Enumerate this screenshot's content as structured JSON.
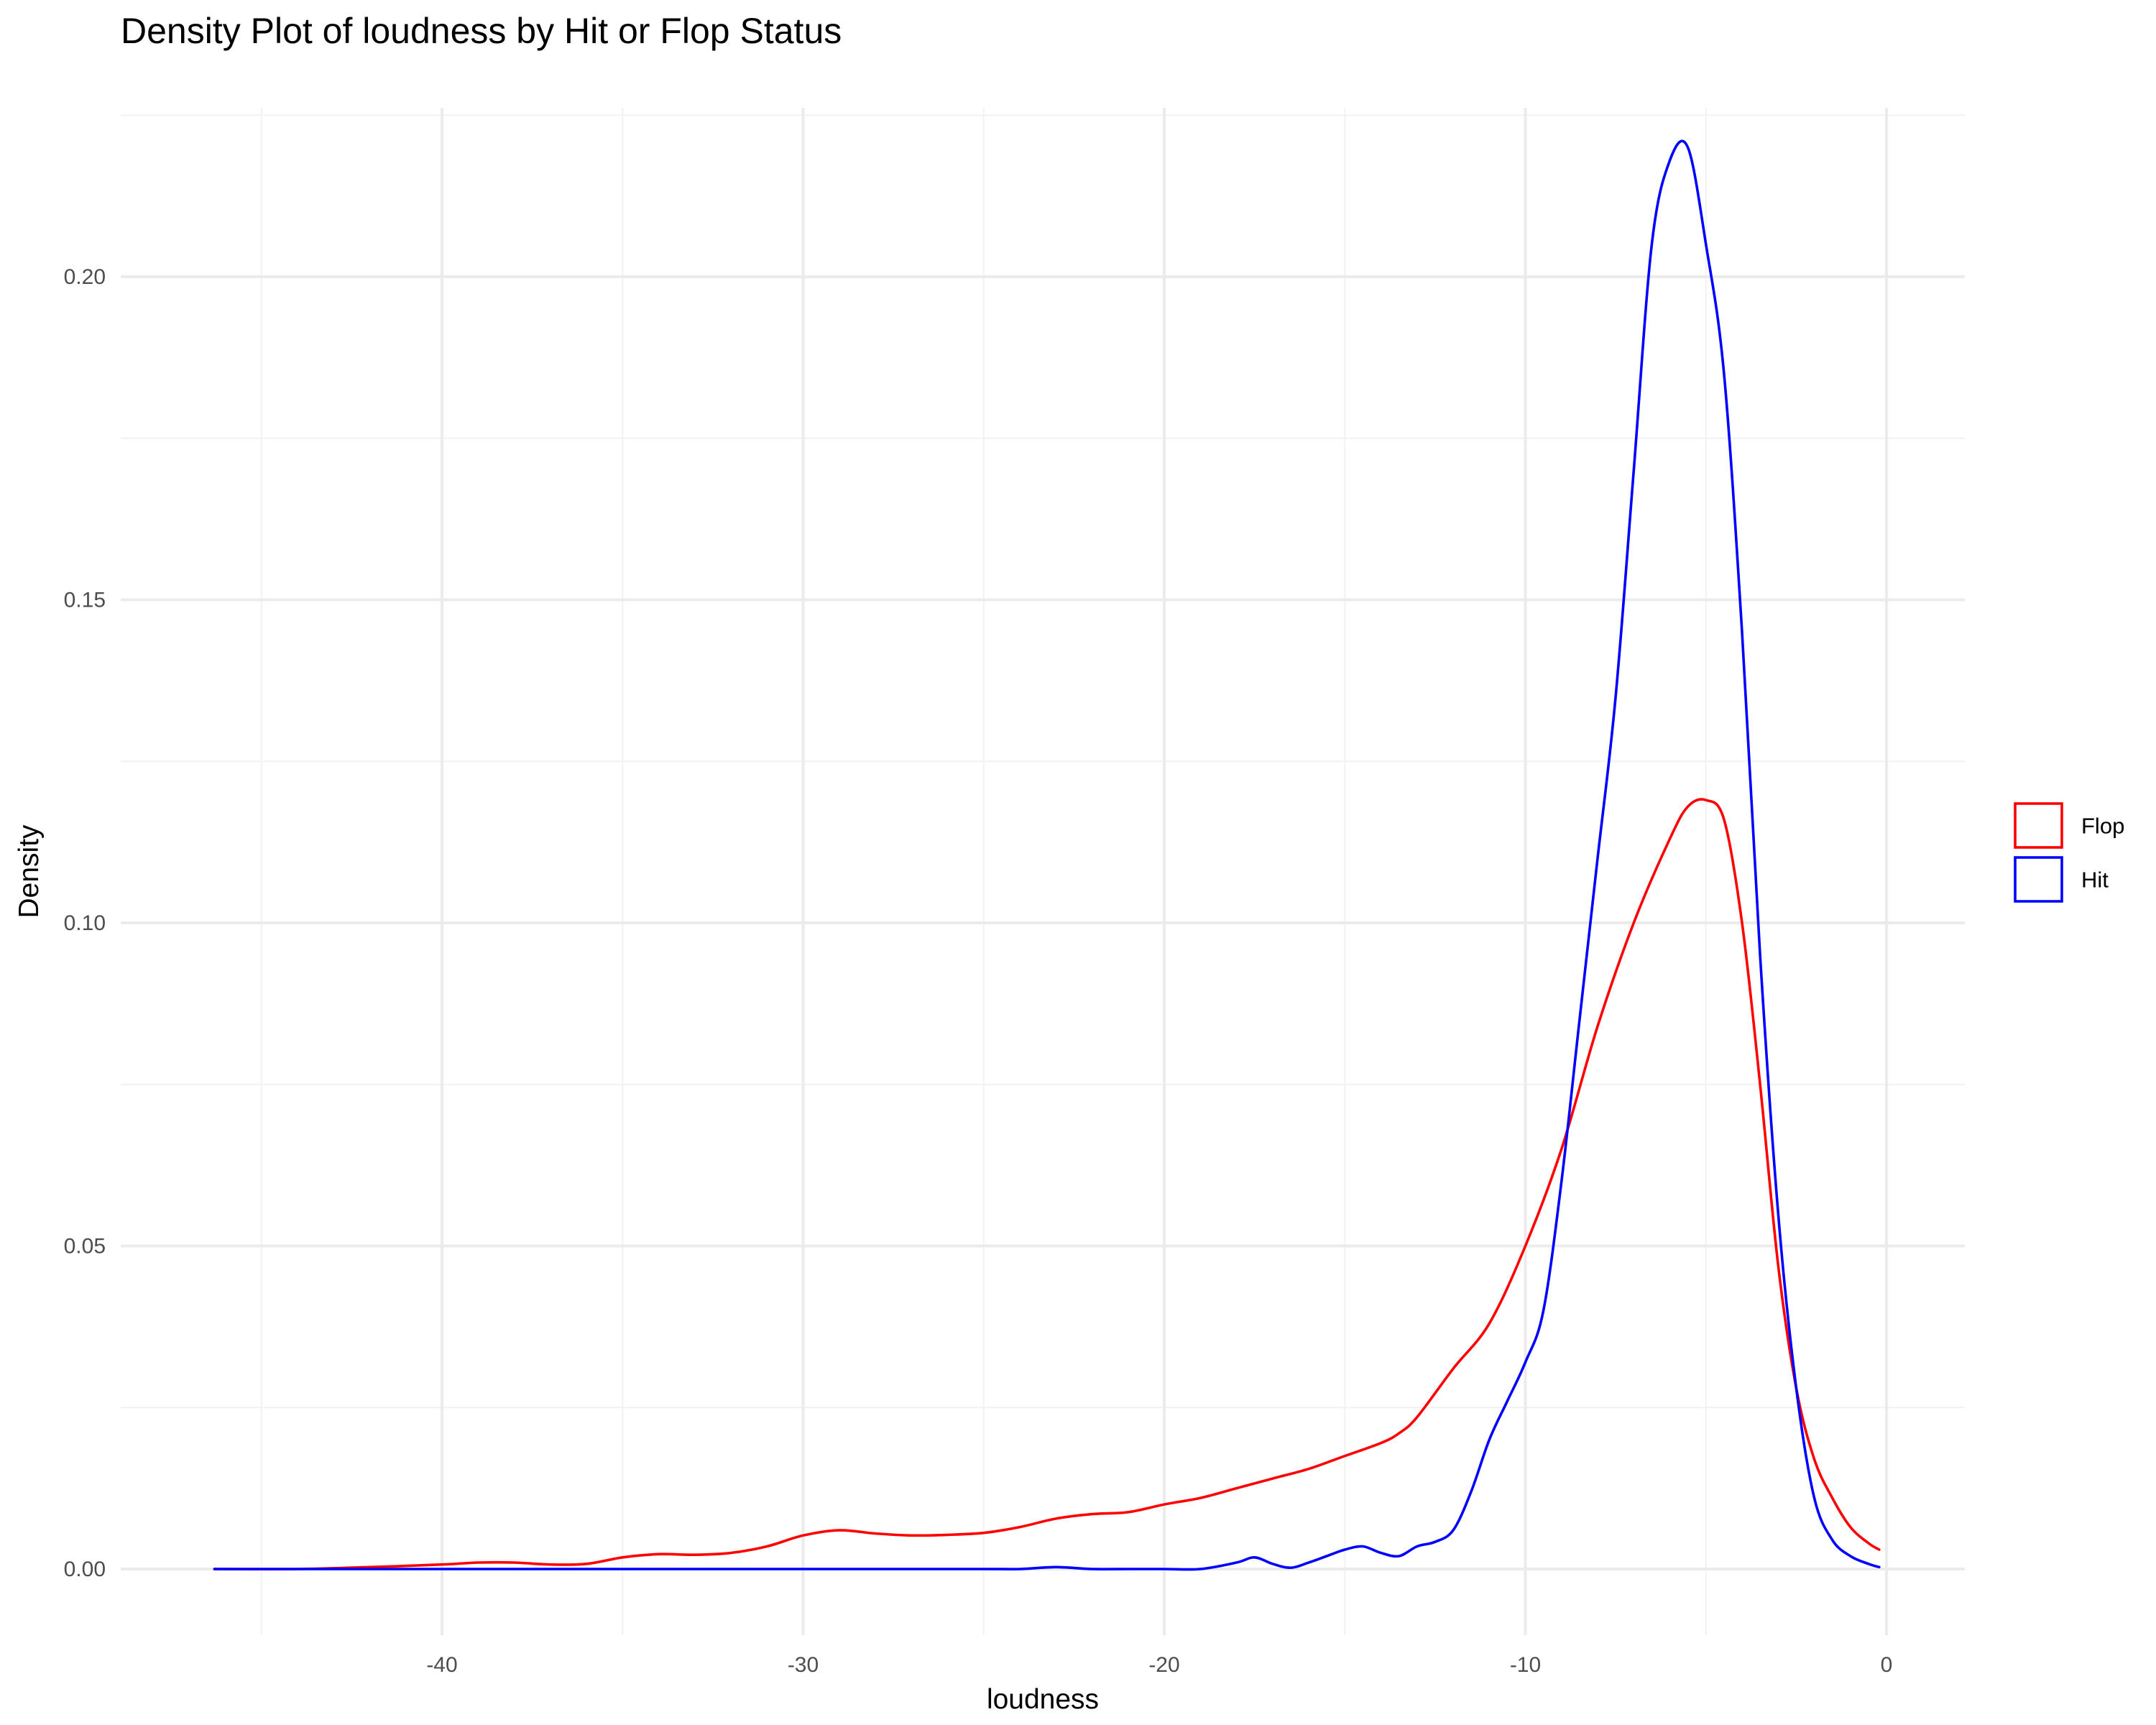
{
  "chart_data": {
    "type": "line",
    "title": "Density Plot of loudness by Hit or Flop Status",
    "xlabel": "loudness",
    "ylabel": "Density",
    "xlim": [
      -46.3,
      0
    ],
    "ylim": [
      0,
      0.22
    ],
    "x_ticks": [
      -40,
      -30,
      -20,
      -10,
      0
    ],
    "y_ticks": [
      0.0,
      0.05,
      0.1,
      0.15,
      0.2
    ],
    "x_tick_labels": [
      "-40",
      "-30",
      "-20",
      "-10",
      "0"
    ],
    "y_tick_labels": [
      "0.00",
      "0.05",
      "0.10",
      "0.15",
      "0.20"
    ],
    "grid": true,
    "legend_position": "right",
    "series": [
      {
        "name": "Flop",
        "color": "#ff0000",
        "x": [
          -46.3,
          -44,
          -42,
          -40,
          -39,
          -38,
          -37,
          -36,
          -35,
          -34,
          -33,
          -32,
          -31,
          -30,
          -29,
          -28,
          -27,
          -26,
          -25,
          -24,
          -23,
          -22,
          -21,
          -20,
          -19,
          -18,
          -17,
          -16,
          -15,
          -14,
          -13.5,
          -13,
          -12,
          -11,
          -10,
          -9,
          -8,
          -7,
          -6,
          -5.5,
          -5,
          -4.5,
          -4,
          -3.5,
          -3,
          -2.5,
          -2,
          -1.5,
          -1,
          -0.5,
          -0.2
        ],
        "y": [
          0.0,
          0.0,
          0.0003,
          0.0007,
          0.001,
          0.001,
          0.0007,
          0.0008,
          0.0018,
          0.0023,
          0.0022,
          0.0025,
          0.0035,
          0.0052,
          0.006,
          0.0055,
          0.0052,
          0.0053,
          0.0056,
          0.0065,
          0.0078,
          0.0085,
          0.0088,
          0.01,
          0.011,
          0.0125,
          0.014,
          0.0155,
          0.0175,
          0.0195,
          0.021,
          0.0235,
          0.031,
          0.038,
          0.05,
          0.065,
          0.084,
          0.1,
          0.113,
          0.118,
          0.119,
          0.116,
          0.1,
          0.075,
          0.047,
          0.028,
          0.017,
          0.011,
          0.0065,
          0.004,
          0.003
        ]
      },
      {
        "name": "Hit",
        "color": "#0000ff",
        "x": [
          -46.3,
          -44,
          -40,
          -35,
          -30,
          -25,
          -24,
          -23,
          -22,
          -21,
          -20,
          -19,
          -18,
          -17.5,
          -17,
          -16.5,
          -16,
          -15.5,
          -15,
          -14.5,
          -14,
          -13.5,
          -13,
          -12.5,
          -12,
          -11.5,
          -11,
          -10.5,
          -10,
          -9.5,
          -9,
          -8.5,
          -8,
          -7.5,
          -7,
          -6.5,
          -6,
          -5.5,
          -5,
          -4.5,
          -4,
          -3.5,
          -3,
          -2.5,
          -2,
          -1.5,
          -1,
          -0.5,
          -0.2
        ],
        "y": [
          0.0,
          0.0,
          0.0,
          0.0,
          0.0,
          0.0,
          0.0,
          0.0003,
          0.0,
          0.0,
          0.0,
          0.0,
          0.001,
          0.0018,
          0.0008,
          0.0002,
          0.001,
          0.002,
          0.003,
          0.0035,
          0.0025,
          0.002,
          0.0035,
          0.0042,
          0.006,
          0.012,
          0.02,
          0.026,
          0.032,
          0.04,
          0.06,
          0.085,
          0.11,
          0.135,
          0.17,
          0.205,
          0.218,
          0.22,
          0.205,
          0.185,
          0.145,
          0.095,
          0.055,
          0.028,
          0.011,
          0.0045,
          0.002,
          0.0008,
          0.0003
        ]
      }
    ]
  }
}
